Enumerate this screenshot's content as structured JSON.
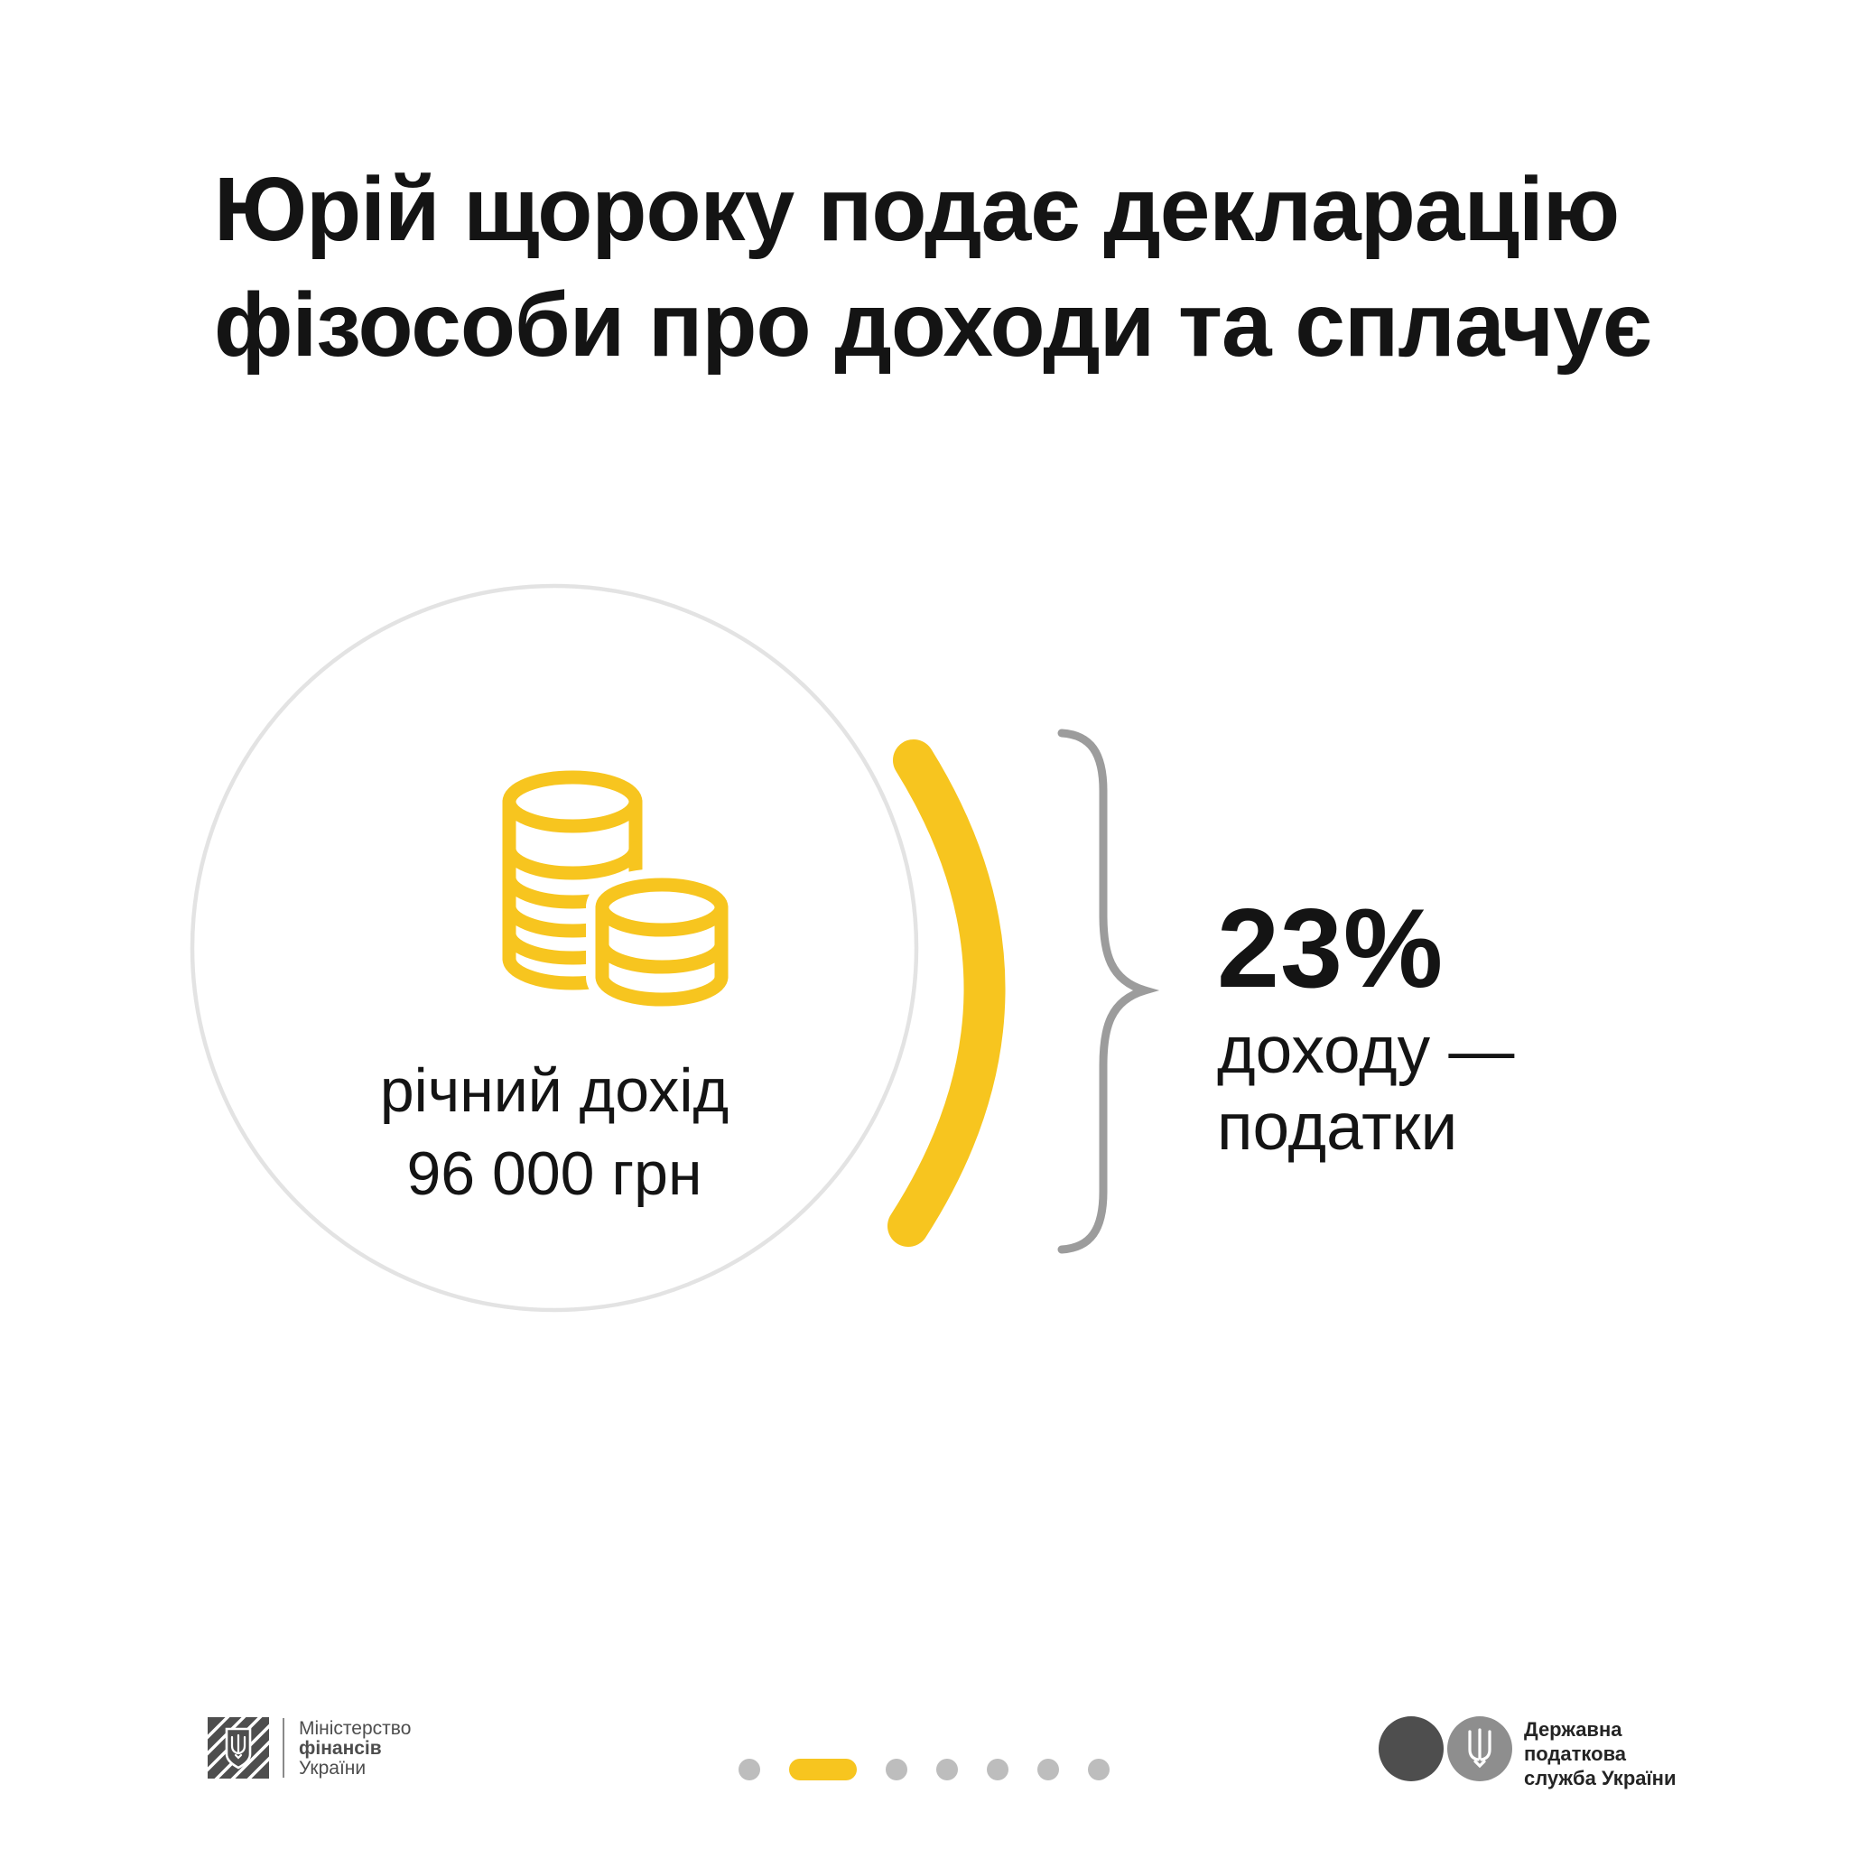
{
  "title": {
    "line1": "Юрій щороку подає декларацію",
    "line2": "фізособи про доходи та сплачує"
  },
  "income_circle": {
    "icon": "coins-stack-icon",
    "label_line1": "річний дохід",
    "label_line2": "96 000 грн"
  },
  "tax_callout": {
    "percent": "23%",
    "desc_line1": "доходу —",
    "desc_line2": "податки"
  },
  "pagination": {
    "active_index": 1,
    "items": [
      {
        "type": "dot"
      },
      {
        "type": "active"
      },
      {
        "type": "dot"
      },
      {
        "type": "dot"
      },
      {
        "type": "dot"
      },
      {
        "type": "dot"
      },
      {
        "type": "dot"
      }
    ]
  },
  "footer": {
    "ministry": {
      "line1": "Міністерство",
      "line2": "фінансів",
      "line3": "України"
    },
    "tax_service": {
      "line1": "Державна",
      "line2": "податкова",
      "line3": "служба України"
    }
  },
  "colors": {
    "accent_yellow": "#F7C51F",
    "circle_outline": "#E3E3E3",
    "brace_gray": "#9C9C9C",
    "dot_gray": "#BDBDBD",
    "logo_dark_gray": "#4E4E4E",
    "logo_light_gray": "#8E8E8E",
    "text_black": "#141414",
    "footer_text_gray": "#4D4D4D"
  }
}
